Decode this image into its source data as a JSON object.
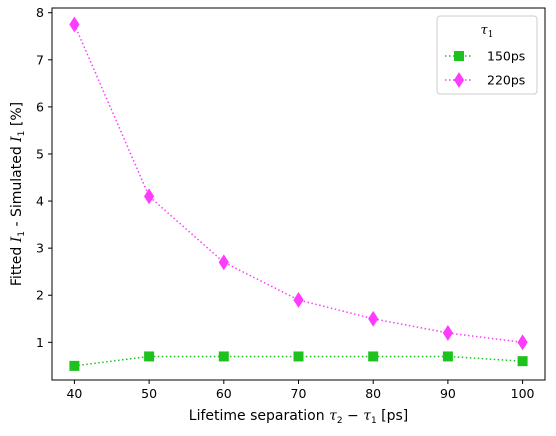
{
  "chart_data": {
    "type": "line",
    "xlabel": {
      "prefix": "Lifetime separation ",
      "math": "τ",
      "sub1": "2",
      "mid": " − ",
      "math2": "τ",
      "sub2": "1",
      "suffix": " [ps]"
    },
    "ylabel": {
      "prefix": "Fitted ",
      "math": "I",
      "sub": "1",
      "middle": " - Simulated ",
      "math2": "I",
      "sub2": "1",
      "suffix": " [%]"
    },
    "x": [
      40,
      50,
      60,
      70,
      80,
      90,
      100
    ],
    "x_ticks": [
      "40",
      "50",
      "60",
      "70",
      "80",
      "90",
      "100"
    ],
    "y_ticks": [
      "1",
      "2",
      "3",
      "4",
      "5",
      "6",
      "7",
      "8"
    ],
    "xlim": [
      37.0,
      103.0
    ],
    "ylim": [
      0.2,
      8.1
    ],
    "grid": false,
    "legend": {
      "placement": "top-right",
      "title_math": "τ",
      "title_sub": "1"
    },
    "series": [
      {
        "name": "150ps",
        "color": "#1ec21e",
        "marker": "square",
        "linestyle": "dotted",
        "values": [
          0.5,
          0.7,
          0.7,
          0.7,
          0.7,
          0.7,
          0.6
        ]
      },
      {
        "name": "220ps",
        "color": "#ff3bff",
        "marker": "diamond",
        "linestyle": "dotted",
        "values": [
          7.75,
          4.1,
          2.7,
          1.9,
          1.5,
          1.2,
          1.0
        ]
      }
    ]
  }
}
